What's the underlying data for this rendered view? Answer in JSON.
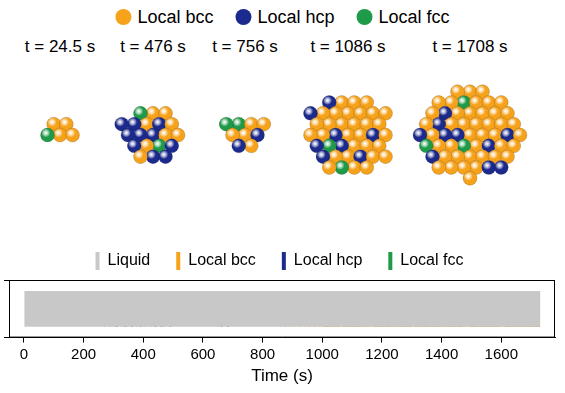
{
  "snapshots": {
    "legend": [
      {
        "label": "Local bcc",
        "color": "#f7a21b"
      },
      {
        "label": "Local hcp",
        "color": "#1b2a8c"
      },
      {
        "label": "Local fcc",
        "color": "#1f9a48"
      }
    ],
    "panels": [
      {
        "label": "t = 24.5 s",
        "counts": {
          "Local bcc": 4,
          "Local hcp": 0,
          "Local fcc": 1
        }
      },
      {
        "label": "t = 476 s",
        "counts": {
          "Local bcc": 8,
          "Local hcp": 10,
          "Local fcc": 2
        }
      },
      {
        "label": "t = 756 s",
        "counts": {
          "Local bcc": 5,
          "Local hcp": 2,
          "Local fcc": 2
        }
      },
      {
        "label": "t = 1086 s",
        "counts": {
          "Local bcc": 30,
          "Local hcp": 8,
          "Local fcc": 2
        }
      },
      {
        "label": "t = 1708 s",
        "counts": {
          "Local bcc": 42,
          "Local hcp": 10,
          "Local fcc": 3
        }
      }
    ]
  },
  "chart_data": {
    "type": "timeline",
    "x_label": "Time (s)",
    "categories": [
      null
    ],
    "xlim": [
      -50,
      1780
    ],
    "xticks": [
      0,
      200,
      400,
      600,
      800,
      1000,
      1200,
      1400,
      1600
    ],
    "grid": false,
    "legend": "top",
    "tick_labels": "x",
    "series": [
      {
        "name": "Liquid",
        "color": "#c8c8c8",
        "intervals": [
          [
            0,
            1730
          ]
        ]
      },
      {
        "name": "Local bcc",
        "color": "#f7a21b",
        "intervals": [
          [
            268,
            274
          ],
          [
            285,
            291
          ],
          [
            300,
            305
          ],
          [
            328,
            333
          ],
          [
            345,
            350
          ],
          [
            375,
            380
          ],
          [
            405,
            410
          ],
          [
            425,
            430
          ],
          [
            470,
            476
          ],
          [
            650,
            655
          ],
          [
            858,
            864
          ],
          [
            874,
            879
          ],
          [
            890,
            896
          ],
          [
            905,
            910
          ],
          [
            922,
            928
          ],
          [
            940,
            946
          ],
          [
            955,
            960
          ],
          [
            972,
            978
          ],
          [
            988,
            994
          ],
          [
            1000,
            1060
          ],
          [
            1066,
            1160
          ],
          [
            1167,
            1300
          ],
          [
            1306,
            1480
          ],
          [
            1487,
            1600
          ],
          [
            1606,
            1730
          ]
        ]
      },
      {
        "name": "Local hcp",
        "color": "#1b2a8c",
        "intervals": [
          [
            308,
            314
          ],
          [
            336,
            342
          ],
          [
            358,
            364
          ],
          [
            388,
            394
          ],
          [
            438,
            444
          ],
          [
            458,
            464
          ],
          [
            488,
            494
          ],
          [
            660,
            665
          ],
          [
            680,
            686
          ],
          [
            1012,
            1018
          ],
          [
            1048,
            1054
          ],
          [
            1088,
            1094
          ],
          [
            1118,
            1124
          ],
          [
            1178,
            1184
          ],
          [
            1218,
            1224
          ],
          [
            1258,
            1264
          ],
          [
            1290,
            1296
          ],
          [
            1340,
            1346
          ],
          [
            1380,
            1386
          ],
          [
            1420,
            1426
          ],
          [
            1458,
            1464
          ],
          [
            1500,
            1506
          ],
          [
            1540,
            1546
          ],
          [
            1560,
            1566
          ],
          [
            1580,
            1586
          ],
          [
            1620,
            1626
          ],
          [
            1650,
            1656
          ],
          [
            1680,
            1686
          ],
          [
            1700,
            1706
          ],
          [
            1720,
            1726
          ]
        ]
      },
      {
        "name": "Local fcc",
        "color": "#1f9a48",
        "intervals": [
          [
            1002,
            1008
          ],
          [
            1030,
            1036
          ],
          [
            1104,
            1110
          ],
          [
            1195,
            1201
          ],
          [
            1270,
            1276
          ],
          [
            1312,
            1318
          ],
          [
            1370,
            1376
          ],
          [
            1440,
            1446
          ],
          [
            1510,
            1516
          ],
          [
            1528,
            1534
          ],
          [
            1612,
            1618
          ],
          [
            1690,
            1696
          ]
        ]
      }
    ]
  }
}
